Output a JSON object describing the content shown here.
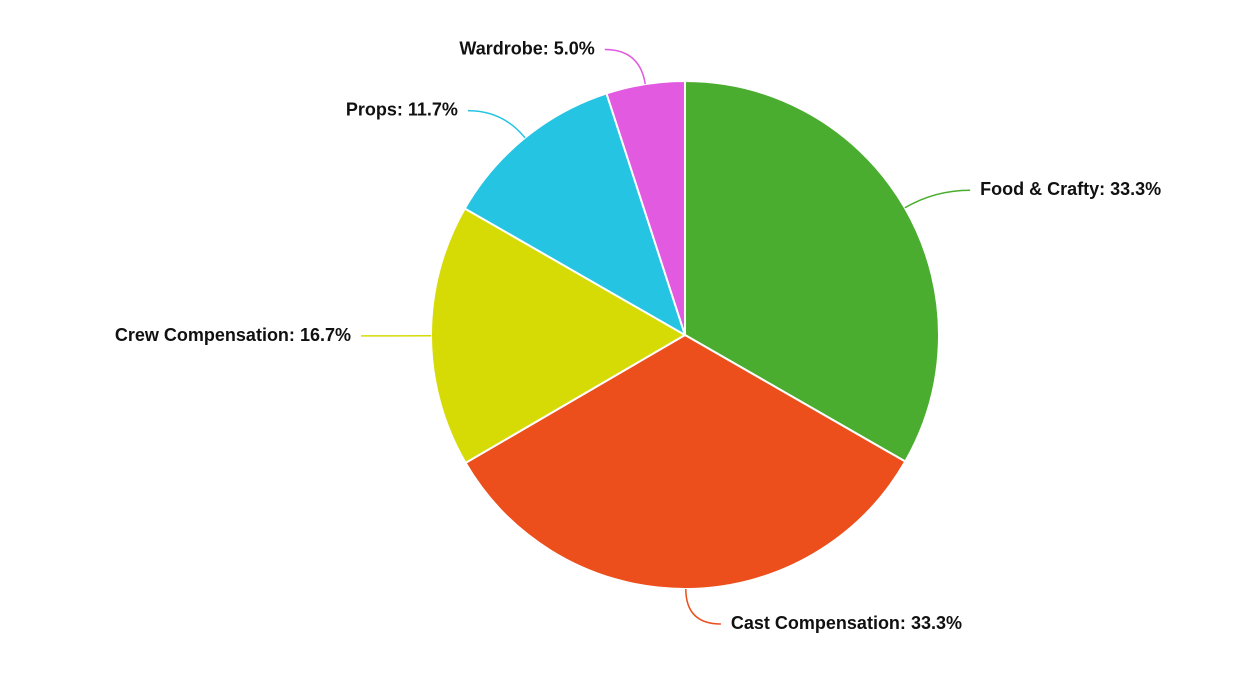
{
  "chart_data": {
    "type": "pie",
    "categories": [
      "Food & Crafty:",
      "Cast Compensation:",
      "Crew Compensation:",
      "Props:",
      "Wardrobe:"
    ],
    "values": [
      33.3,
      33.3,
      16.7,
      11.7,
      5.0
    ],
    "value_labels": [
      "33.3%",
      "33.3%",
      "16.7%",
      "11.7%",
      "5.0%"
    ],
    "colors": [
      "#4aad2f",
      "#ec4e1c",
      "#d6db06",
      "#24c4e2",
      "#e15ae0"
    ]
  }
}
